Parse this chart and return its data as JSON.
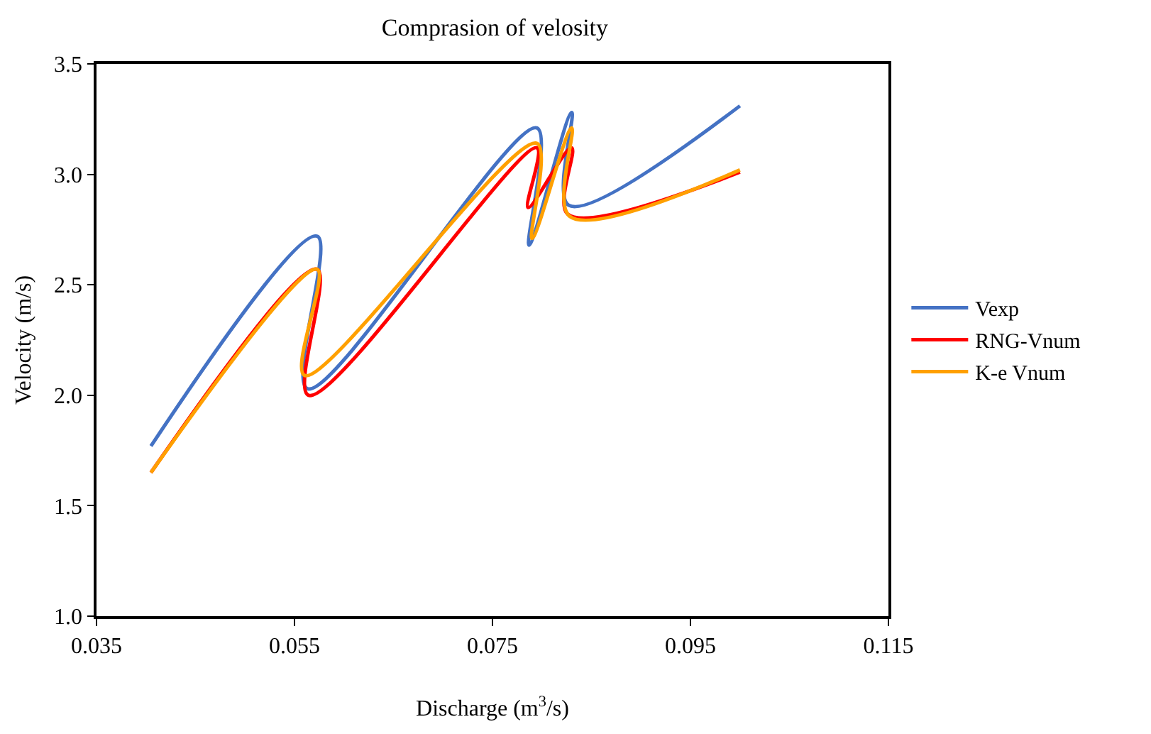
{
  "chart_data": {
    "type": "line",
    "title": "Comprasion of velosity",
    "xlabel": "Discharge (m$^{3}$/s)",
    "ylabel": "Velocity (m/s)",
    "series": [
      {
        "name": "Vexp",
        "color": "#4472c4",
        "x": [
          0.0405,
          0.0573,
          0.0563,
          0.0795,
          0.0787,
          0.083,
          0.0827,
          0.1
        ],
        "values": [
          1.77,
          2.72,
          2.03,
          3.21,
          2.68,
          3.28,
          2.86,
          3.31
        ]
      },
      {
        "name": "RNG-Vnum",
        "color": "#ff0000",
        "x": [
          0.0405,
          0.0573,
          0.0564,
          0.0795,
          0.0786,
          0.083,
          0.0826,
          0.1
        ],
        "values": [
          1.65,
          2.57,
          2.0,
          3.12,
          2.85,
          3.12,
          2.82,
          3.01
        ]
      },
      {
        "name": "K-e Vnum",
        "color": "#ffa000",
        "x": [
          0.0405,
          0.0573,
          0.056,
          0.0795,
          0.079,
          0.083,
          0.0828,
          0.1
        ],
        "values": [
          1.65,
          2.57,
          2.09,
          3.14,
          2.71,
          3.21,
          2.81,
          3.02
        ]
      }
    ],
    "xlim": [
      0.035,
      0.115
    ],
    "xticks": [
      0.035,
      0.055,
      0.075,
      0.095,
      0.115
    ],
    "ylim": [
      1.0,
      3.5
    ],
    "yticks": [
      {
        "value": 1.0,
        "label": "1.0"
      },
      {
        "value": 1.5,
        "label": "1.5"
      },
      {
        "value": 2.0,
        "label": "2.0"
      },
      {
        "value": 2.5,
        "label": "2.5"
      },
      {
        "value": 3.0,
        "label": "3.0"
      },
      {
        "value": 3.5,
        "label": "3.5"
      }
    ],
    "grid": false,
    "legend": "right",
    "marker": "none",
    "line_style": "solid"
  }
}
